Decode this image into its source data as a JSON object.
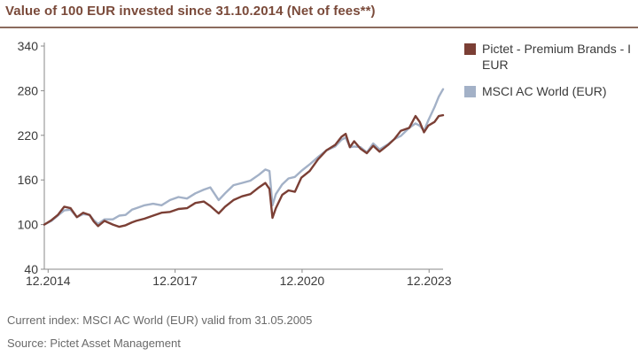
{
  "title": "Value of 100 EUR invested since 31.10.2014 (Net of fees**)",
  "footnotes": {
    "index_note": "Current index: MSCI AC World (EUR) valid from 31.05.2005",
    "source": "Source: Pictet Asset Management"
  },
  "chart_data": {
    "type": "line",
    "ylim": [
      40,
      340
    ],
    "y_ticks": [
      40,
      100,
      160,
      220,
      280,
      340
    ],
    "x_ticks": [
      {
        "label": "12.2014",
        "x": 2014.92
      },
      {
        "label": "12.2017",
        "x": 2017.92
      },
      {
        "label": "12.2020",
        "x": 2020.92
      },
      {
        "label": "12.2023",
        "x": 2023.92
      }
    ],
    "xlim": [
      2014.83,
      2024.25
    ],
    "grid": false,
    "legend_position": "right",
    "series": [
      {
        "name": "Pictet - Premium Brands - I EUR",
        "color": "#7b3f35",
        "points": [
          [
            2014.83,
            100
          ],
          [
            2015.0,
            106
          ],
          [
            2015.15,
            113
          ],
          [
            2015.3,
            124
          ],
          [
            2015.45,
            122
          ],
          [
            2015.6,
            110
          ],
          [
            2015.75,
            116
          ],
          [
            2015.9,
            113
          ],
          [
            2016.0,
            104
          ],
          [
            2016.1,
            98
          ],
          [
            2016.25,
            105
          ],
          [
            2016.45,
            100
          ],
          [
            2016.6,
            97
          ],
          [
            2016.75,
            99
          ],
          [
            2016.9,
            103
          ],
          [
            2017.0,
            105
          ],
          [
            2017.2,
            108
          ],
          [
            2017.4,
            112
          ],
          [
            2017.6,
            116
          ],
          [
            2017.8,
            117
          ],
          [
            2018.0,
            121
          ],
          [
            2018.2,
            122
          ],
          [
            2018.4,
            129
          ],
          [
            2018.6,
            131
          ],
          [
            2018.75,
            125
          ],
          [
            2018.95,
            115
          ],
          [
            2019.1,
            124
          ],
          [
            2019.3,
            133
          ],
          [
            2019.5,
            138
          ],
          [
            2019.7,
            141
          ],
          [
            2019.9,
            150
          ],
          [
            2020.05,
            156
          ],
          [
            2020.15,
            148
          ],
          [
            2020.22,
            109
          ],
          [
            2020.3,
            122
          ],
          [
            2020.45,
            140
          ],
          [
            2020.6,
            146
          ],
          [
            2020.75,
            144
          ],
          [
            2020.9,
            163
          ],
          [
            2021.1,
            172
          ],
          [
            2021.3,
            188
          ],
          [
            2021.5,
            200
          ],
          [
            2021.7,
            207
          ],
          [
            2021.85,
            218
          ],
          [
            2021.95,
            222
          ],
          [
            2022.05,
            204
          ],
          [
            2022.15,
            212
          ],
          [
            2022.3,
            202
          ],
          [
            2022.45,
            196
          ],
          [
            2022.6,
            206
          ],
          [
            2022.75,
            198
          ],
          [
            2022.95,
            207
          ],
          [
            2023.1,
            215
          ],
          [
            2023.25,
            226
          ],
          [
            2023.45,
            230
          ],
          [
            2023.6,
            246
          ],
          [
            2023.7,
            238
          ],
          [
            2023.8,
            224
          ],
          [
            2023.9,
            233
          ],
          [
            2024.05,
            238
          ],
          [
            2024.15,
            246
          ],
          [
            2024.25,
            247
          ]
        ]
      },
      {
        "name": "MSCI AC World (EUR)",
        "color": "#a3b1c7",
        "points": [
          [
            2014.83,
            100
          ],
          [
            2015.0,
            105
          ],
          [
            2015.15,
            112
          ],
          [
            2015.3,
            119
          ],
          [
            2015.45,
            120
          ],
          [
            2015.6,
            110
          ],
          [
            2015.75,
            114
          ],
          [
            2015.9,
            113
          ],
          [
            2016.0,
            106
          ],
          [
            2016.1,
            101
          ],
          [
            2016.25,
            107
          ],
          [
            2016.45,
            107
          ],
          [
            2016.6,
            112
          ],
          [
            2016.75,
            113
          ],
          [
            2016.9,
            120
          ],
          [
            2017.0,
            122
          ],
          [
            2017.2,
            126
          ],
          [
            2017.4,
            128
          ],
          [
            2017.6,
            126
          ],
          [
            2017.8,
            133
          ],
          [
            2018.0,
            137
          ],
          [
            2018.2,
            135
          ],
          [
            2018.4,
            142
          ],
          [
            2018.6,
            147
          ],
          [
            2018.75,
            150
          ],
          [
            2018.95,
            133
          ],
          [
            2019.1,
            142
          ],
          [
            2019.3,
            153
          ],
          [
            2019.5,
            156
          ],
          [
            2019.7,
            159
          ],
          [
            2019.9,
            167
          ],
          [
            2020.05,
            174
          ],
          [
            2020.15,
            172
          ],
          [
            2020.22,
            126
          ],
          [
            2020.3,
            141
          ],
          [
            2020.45,
            154
          ],
          [
            2020.6,
            162
          ],
          [
            2020.75,
            164
          ],
          [
            2020.9,
            172
          ],
          [
            2021.1,
            181
          ],
          [
            2021.3,
            191
          ],
          [
            2021.5,
            200
          ],
          [
            2021.7,
            205
          ],
          [
            2021.85,
            214
          ],
          [
            2021.95,
            217
          ],
          [
            2022.05,
            204
          ],
          [
            2022.15,
            205
          ],
          [
            2022.3,
            204
          ],
          [
            2022.45,
            197
          ],
          [
            2022.6,
            209
          ],
          [
            2022.75,
            201
          ],
          [
            2022.95,
            208
          ],
          [
            2023.1,
            215
          ],
          [
            2023.25,
            219
          ],
          [
            2023.45,
            230
          ],
          [
            2023.6,
            236
          ],
          [
            2023.7,
            233
          ],
          [
            2023.8,
            226
          ],
          [
            2023.9,
            240
          ],
          [
            2024.05,
            258
          ],
          [
            2024.15,
            272
          ],
          [
            2024.25,
            282
          ]
        ]
      }
    ]
  }
}
